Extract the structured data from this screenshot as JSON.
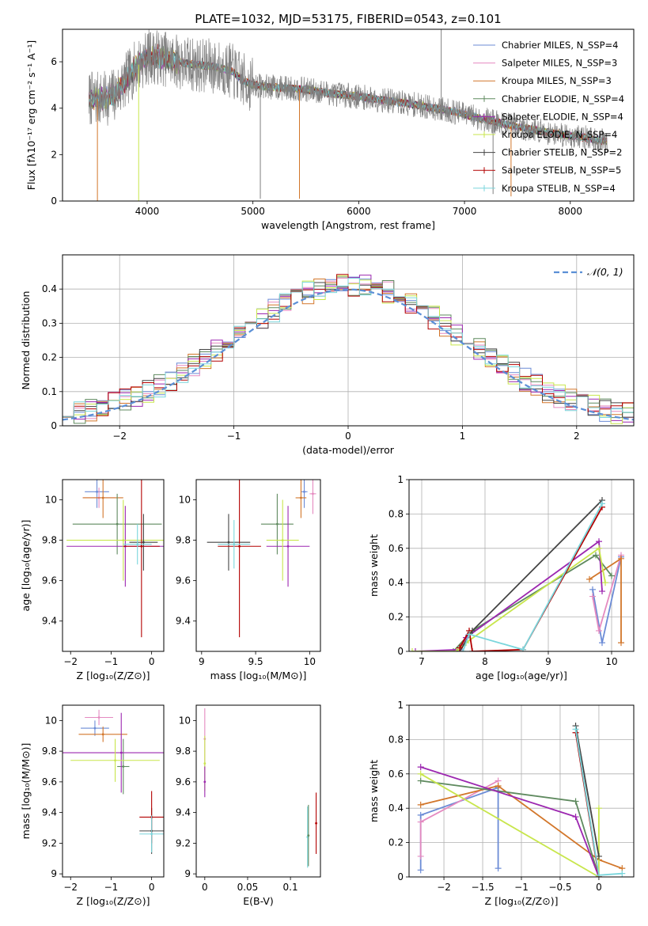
{
  "figure_title": "PLATE=1032, MJD=53175, FIBERID=0543, z=0.101",
  "colors": {
    "Chabrier MILES": "#6b8bd6",
    "Salpeter MILES": "#e58ac0",
    "Kroupa MILES": "#d2762a",
    "Chabrier ELODIE": "#5f8a5f",
    "Salpeter ELODIE": "#9c27b0",
    "Kroupa ELODIE": "#c8e64c",
    "Chabrier STELIB": "#444444",
    "Salpeter STELIB": "#b30000",
    "Kroupa STELIB": "#7ad6dc",
    "data": "#808080",
    "normal": "#5b8fd6"
  },
  "chart_data": [
    {
      "id": "spectrum",
      "type": "line",
      "title": "PLATE=1032, MJD=53175, FIBERID=0543, z=0.101",
      "xlabel": "wavelength [Angstrom, rest frame]",
      "ylabel": "Flux [fλ10⁻¹⁷ erg cm⁻² s⁻¹ A⁻¹]",
      "xlim": [
        3200,
        8600
      ],
      "ylim": [
        0,
        7.4
      ],
      "xticks": [
        4000,
        5000,
        6000,
        7000,
        8000
      ],
      "yticks": [
        0,
        2,
        4,
        6
      ],
      "legend": "top-right",
      "legend_entries": [
        "Chabrier MILES, N_SSP=4",
        "Salpeter MILES, N_SSP=3",
        "Kroupa MILES, N_SSP=3",
        "Chabrier ELODIE, N_SSP=4",
        "Salpeter ELODIE, N_SSP=4",
        "Kroupa ELODIE, N_SSP=4",
        "Chabrier STELIB, N_SSP=2",
        "Salpeter STELIB, N_SSP=5",
        "Kroupa STELIB, N_SSP=4"
      ],
      "continuum": {
        "x": [
          3450,
          3600,
          3700,
          3800,
          3900,
          4000,
          4100,
          4200,
          4400,
          4600,
          4800,
          4900,
          5000,
          5200,
          5500,
          5800,
          6000,
          6300,
          6600,
          6900,
          7200,
          7500,
          7800,
          8100,
          8350
        ],
        "y": [
          4.4,
          4.4,
          4.6,
          5.2,
          5.8,
          6.2,
          6.2,
          6.1,
          5.9,
          5.8,
          5.6,
          5.2,
          5.0,
          4.9,
          4.8,
          4.6,
          4.5,
          4.3,
          4.1,
          3.85,
          3.5,
          3.2,
          2.95,
          2.75,
          2.55
        ]
      },
      "data_noise_amplitude": 0.55,
      "spikes": [
        {
          "series": "Kroupa MILES",
          "x": 3530,
          "ymin": 0.0
        },
        {
          "series": "Kroupa ELODIE",
          "x": 3920,
          "ymin": 0.0
        },
        {
          "series": "Kroupa MILES",
          "x": 5440,
          "ymin": 0.1
        },
        {
          "series": "Kroupa MILES",
          "x": 7440,
          "ymin": 0.2
        },
        {
          "series": "data",
          "x": 5070,
          "ymin": 0.1
        },
        {
          "series": "data",
          "x": 6780,
          "ymin": 7.4
        },
        {
          "series": "data",
          "x": 7270,
          "ymin": 0.3
        }
      ]
    },
    {
      "id": "residuals",
      "type": "histogram",
      "xlabel": "(data-model)/error",
      "ylabel": "Normed distribution",
      "xlim": [
        -2.5,
        2.5
      ],
      "ylim": [
        0,
        0.5
      ],
      "xticks": [
        -2,
        -1,
        0,
        1,
        2
      ],
      "yticks": [
        0.0,
        0.1,
        0.2,
        0.3,
        0.4
      ],
      "legend": "top-right",
      "legend_entries": [
        "𝒩(0, 1)"
      ],
      "bin_width": 0.1,
      "envelope": "standard normal density",
      "spread": 0.035
    },
    {
      "id": "age_vs_Z",
      "type": "scatter",
      "xlabel": "Z [log₁₀(Z/Z⊙)]",
      "ylabel": "age  [log₁₀(age/yr)]",
      "xlim": [
        -2.2,
        0.3
      ],
      "ylim": [
        9.25,
        10.1
      ],
      "xticks": [
        -2,
        -1,
        0
      ],
      "yticks": [
        9.4,
        9.6,
        9.8,
        10.0
      ],
      "points": [
        {
          "series": "Chabrier MILES",
          "x": -1.35,
          "y": 10.04,
          "xerr": 0.3,
          "yerr": 0.08
        },
        {
          "series": "Salpeter MILES",
          "x": -1.3,
          "y": 10.01,
          "xerr": 0.4,
          "yerr": 0.05
        },
        {
          "series": "Kroupa MILES",
          "x": -1.2,
          "y": 10.01,
          "xerr": 0.5,
          "yerr": 0.1
        },
        {
          "series": "Chabrier ELODIE",
          "x": -0.85,
          "y": 9.88,
          "xerr": 1.1,
          "yerr": 0.15
        },
        {
          "series": "Salpeter ELODIE",
          "x": -0.65,
          "y": 9.77,
          "xerr": 1.45,
          "yerr": 0.2
        },
        {
          "series": "Kroupa ELODIE",
          "x": -0.7,
          "y": 9.8,
          "xerr": 1.4,
          "yerr": 0.2
        },
        {
          "series": "Chabrier STELIB",
          "x": -0.2,
          "y": 9.79,
          "xerr": 0.35,
          "yerr": 0.14
        },
        {
          "series": "Salpeter STELIB",
          "x": -0.25,
          "y": 9.77,
          "xerr": 0.45,
          "yerr": 0.45
        },
        {
          "series": "Kroupa STELIB",
          "x": -0.35,
          "y": 9.78,
          "xerr": 0.35,
          "yerr": 0.1
        }
      ]
    },
    {
      "id": "age_vs_mass",
      "type": "scatter",
      "xlabel": "mass [log₁₀(M/M⊙)]",
      "ylabel": "",
      "xlim": [
        8.95,
        10.1
      ],
      "ylim": [
        9.25,
        10.1
      ],
      "xticks": [
        9.0,
        9.5,
        10.0
      ],
      "yticks": [
        9.4,
        9.6,
        9.8,
        10.0
      ],
      "points": [
        {
          "series": "Chabrier MILES",
          "x": 9.95,
          "y": 10.04,
          "xerr": 0.03,
          "yerr": 0.08
        },
        {
          "series": "Salpeter MILES",
          "x": 10.03,
          "y": 10.03,
          "xerr": 0.03,
          "yerr": 0.1
        },
        {
          "series": "Kroupa MILES",
          "x": 9.92,
          "y": 10.01,
          "xerr": 0.05,
          "yerr": 0.1
        },
        {
          "series": "Chabrier ELODIE",
          "x": 9.7,
          "y": 9.88,
          "xerr": 0.15,
          "yerr": 0.15
        },
        {
          "series": "Salpeter ELODIE",
          "x": 9.8,
          "y": 9.77,
          "xerr": 0.2,
          "yerr": 0.2
        },
        {
          "series": "Kroupa ELODIE",
          "x": 9.75,
          "y": 9.8,
          "xerr": 0.15,
          "yerr": 0.2
        },
        {
          "series": "Chabrier STELIB",
          "x": 9.25,
          "y": 9.79,
          "xerr": 0.2,
          "yerr": 0.14
        },
        {
          "series": "Salpeter STELIB",
          "x": 9.35,
          "y": 9.77,
          "xerr": 0.2,
          "yerr": 0.45
        },
        {
          "series": "Kroupa STELIB",
          "x": 9.3,
          "y": 9.78,
          "xerr": 0.15,
          "yerr": 0.12
        }
      ]
    },
    {
      "id": "weight_vs_age",
      "type": "line",
      "xlabel": "age  [log₁₀(age/yr)]",
      "ylabel": "mass weight",
      "xlim": [
        6.8,
        10.35
      ],
      "ylim": [
        0,
        1.0
      ],
      "xticks": [
        7,
        8,
        9,
        10
      ],
      "yticks": [
        0.0,
        0.2,
        0.4,
        0.6,
        0.8,
        1.0
      ],
      "series": [
        {
          "name": "Chabrier MILES",
          "x": [
            9.7,
            9.85,
            10.15
          ],
          "y": [
            0.36,
            0.05,
            0.55
          ]
        },
        {
          "name": "Salpeter MILES",
          "x": [
            9.7,
            9.8,
            10.15
          ],
          "y": [
            0.32,
            0.12,
            0.56
          ]
        },
        {
          "name": "Kroupa MILES",
          "x": [
            9.65,
            10.15,
            10.15
          ],
          "y": [
            0.42,
            0.54,
            0.05
          ]
        },
        {
          "name": "Chabrier ELODIE",
          "x": [
            7.5,
            7.8,
            9.75,
            10.0
          ],
          "y": [
            0.0,
            0.12,
            0.56,
            0.44
          ]
        },
        {
          "name": "Salpeter ELODIE",
          "x": [
            6.9,
            7.6,
            7.7,
            9.8,
            9.85
          ],
          "y": [
            0.0,
            0.01,
            0.08,
            0.64,
            0.35
          ]
        },
        {
          "name": "Kroupa ELODIE",
          "x": [
            6.85,
            7.55,
            7.7,
            9.8,
            9.9
          ],
          "y": [
            0.0,
            0.0,
            0.05,
            0.6,
            0.4
          ]
        },
        {
          "name": "Chabrier STELIB",
          "x": [
            7.6,
            7.8,
            9.85
          ],
          "y": [
            0.0,
            0.12,
            0.88
          ]
        },
        {
          "name": "Salpeter STELIB",
          "x": [
            7.6,
            7.75,
            7.8,
            8.6,
            9.85
          ],
          "y": [
            0.02,
            0.12,
            0.0,
            0.01,
            0.84
          ]
        },
        {
          "name": "Kroupa STELIB",
          "x": [
            7.65,
            7.75,
            8.6,
            9.85
          ],
          "y": [
            0.0,
            0.1,
            0.01,
            0.86
          ]
        }
      ]
    },
    {
      "id": "mass_vs_Z",
      "type": "scatter",
      "xlabel": "Z [log₁₀(Z/Z⊙)]",
      "ylabel": "mass [log₁₀(M/M⊙)]",
      "xlim": [
        -2.2,
        0.3
      ],
      "ylim": [
        8.98,
        10.1
      ],
      "xticks": [
        -2,
        -1,
        0
      ],
      "yticks": [
        9.0,
        9.2,
        9.4,
        9.6,
        9.8,
        10.0
      ],
      "points": [
        {
          "series": "Chabrier MILES",
          "x": -1.4,
          "y": 9.95,
          "xerr": 0.35,
          "yerr": 0.05
        },
        {
          "series": "Salpeter MILES",
          "x": -1.3,
          "y": 10.02,
          "xerr": 0.35,
          "yerr": 0.05
        },
        {
          "series": "Kroupa MILES",
          "x": -1.2,
          "y": 9.91,
          "xerr": 0.6,
          "yerr": 0.05
        },
        {
          "series": "Chabrier ELODIE",
          "x": -0.7,
          "y": 9.7,
          "xerr": 0.15,
          "yerr": 0.18
        },
        {
          "series": "Salpeter ELODIE",
          "x": -0.75,
          "y": 9.79,
          "xerr": 1.45,
          "yerr": 0.26
        },
        {
          "series": "Kroupa ELODIE",
          "x": -0.9,
          "y": 9.74,
          "xerr": 1.1,
          "yerr": 0.14
        },
        {
          "series": "Chabrier STELIB",
          "x": 0.0,
          "y": 9.28,
          "xerr": 0.3,
          "yerr": 0.15
        },
        {
          "series": "Salpeter STELIB",
          "x": 0.0,
          "y": 9.37,
          "xerr": 0.3,
          "yerr": 0.17
        },
        {
          "series": "Kroupa STELIB",
          "x": 0.0,
          "y": 9.26,
          "xerr": 0.3,
          "yerr": 0.12
        }
      ]
    },
    {
      "id": "mass_vs_EBV",
      "type": "scatter",
      "xlabel": "E(B-V)",
      "ylabel": "",
      "xlim": [
        -0.01,
        0.135
      ],
      "ylim": [
        8.98,
        10.1
      ],
      "xticks": [
        0.0,
        0.05,
        0.1
      ],
      "yticks": [
        9.0,
        9.2,
        9.4,
        9.6,
        9.8,
        10.0
      ],
      "points": [
        {
          "series": "Salpeter MILES",
          "x": 0.0,
          "y": 9.88,
          "xerr": 0.0,
          "yerr": 0.2
        },
        {
          "series": "Kroupa ELODIE",
          "x": 0.0,
          "y": 9.72,
          "xerr": 0.0,
          "yerr": 0.18
        },
        {
          "series": "Salpeter ELODIE",
          "x": 0.0,
          "y": 9.6,
          "xerr": 0.0,
          "yerr": 0.1
        },
        {
          "series": "Kroupa STELIB",
          "x": 0.12,
          "y": 9.24,
          "xerr": 0.0,
          "yerr": 0.2
        },
        {
          "series": "Chabrier ELODIE",
          "x": 0.121,
          "y": 9.25,
          "xerr": 0.0,
          "yerr": 0.2
        },
        {
          "series": "Salpeter STELIB",
          "x": 0.13,
          "y": 9.33,
          "xerr": 0.0,
          "yerr": 0.2
        }
      ]
    },
    {
      "id": "weight_vs_Z",
      "type": "line",
      "xlabel": "Z [log₁₀(Z/Z⊙)]",
      "ylabel": "mass weight",
      "xlim": [
        -2.45,
        0.45
      ],
      "ylim": [
        0,
        1.0
      ],
      "xticks": [
        -2.0,
        -1.5,
        -1.0,
        -0.5,
        0.0
      ],
      "yticks": [
        0.0,
        0.2,
        0.4,
        0.6,
        0.8,
        1.0
      ],
      "series": [
        {
          "name": "Chabrier MILES",
          "x": [
            -2.3,
            -2.3,
            -1.3,
            -1.3
          ],
          "y": [
            0.04,
            0.36,
            0.52,
            0.05
          ]
        },
        {
          "name": "Salpeter MILES",
          "x": [
            -2.3,
            -2.3,
            -1.3
          ],
          "y": [
            0.12,
            0.32,
            0.56
          ]
        },
        {
          "name": "Kroupa MILES",
          "x": [
            -2.3,
            -1.3,
            0.0,
            0.3
          ],
          "y": [
            0.42,
            0.53,
            0.1,
            0.05
          ]
        },
        {
          "name": "Chabrier ELODIE",
          "x": [
            -2.3,
            -0.3,
            0.0
          ],
          "y": [
            0.56,
            0.44,
            0.0
          ]
        },
        {
          "name": "Salpeter ELODIE",
          "x": [
            -2.3,
            -0.3,
            0.0
          ],
          "y": [
            0.64,
            0.35,
            0.0
          ]
        },
        {
          "name": "Kroupa ELODIE",
          "x": [
            -2.3,
            0.0,
            0.0
          ],
          "y": [
            0.6,
            0.0,
            0.4
          ]
        },
        {
          "name": "Chabrier STELIB",
          "x": [
            -0.3,
            0.0
          ],
          "y": [
            0.88,
            0.12
          ]
        },
        {
          "name": "Salpeter STELIB",
          "x": [
            -0.3,
            0.0
          ],
          "y": [
            0.84,
            0.0
          ]
        },
        {
          "name": "Kroupa STELIB",
          "x": [
            -0.3,
            0.0,
            0.3
          ],
          "y": [
            0.86,
            0.01,
            0.02
          ]
        }
      ]
    }
  ]
}
